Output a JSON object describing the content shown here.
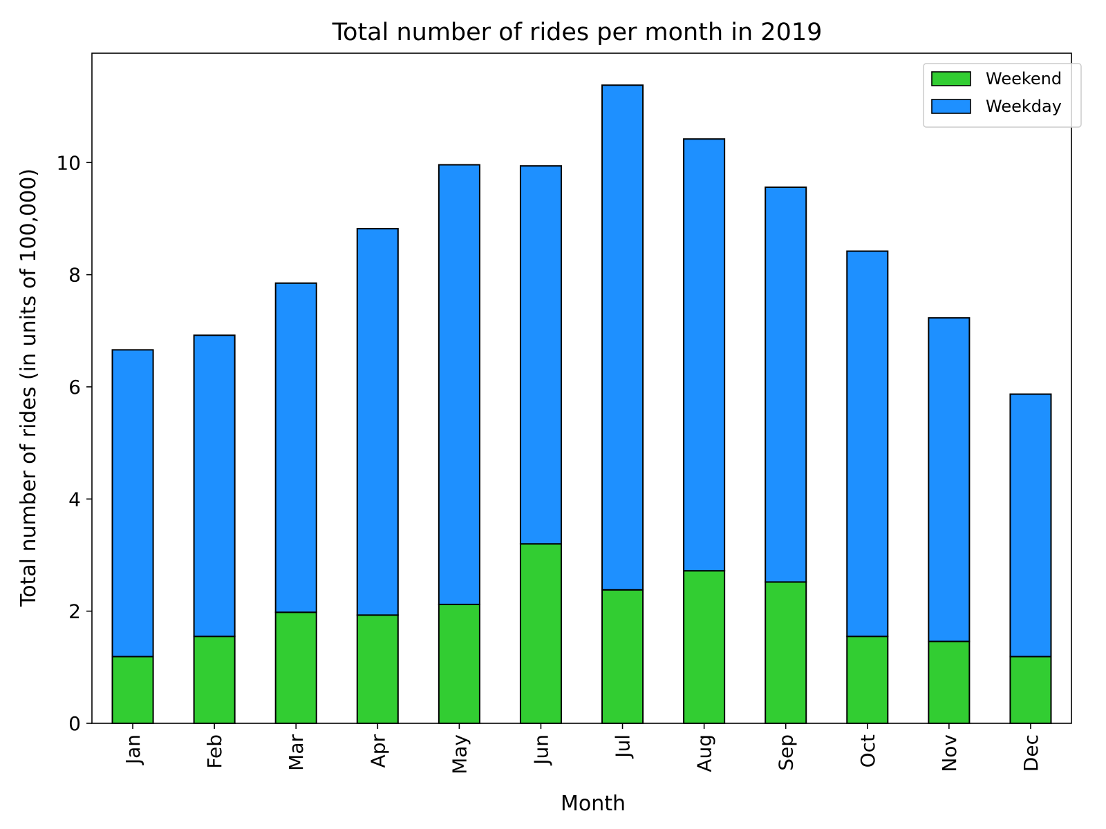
{
  "chart_data": {
    "type": "bar",
    "stacked": true,
    "title": "Total number of rides per month in 2019",
    "xlabel": "Month",
    "ylabel": "Total number of rides (in units of 100,000)",
    "categories": [
      "Jan",
      "Feb",
      "Mar",
      "Apr",
      "May",
      "Jun",
      "Jul",
      "Aug",
      "Sep",
      "Oct",
      "Nov",
      "Dec"
    ],
    "series": [
      {
        "name": "Weekend",
        "color": "#32cd32",
        "values": [
          1.19,
          1.55,
          1.98,
          1.93,
          2.12,
          3.2,
          2.38,
          2.72,
          2.52,
          1.55,
          1.46,
          1.19
        ]
      },
      {
        "name": "Weekday",
        "color": "#1e90ff",
        "values": [
          5.47,
          5.37,
          5.87,
          6.89,
          7.84,
          6.74,
          9.0,
          7.7,
          7.04,
          6.87,
          5.77,
          4.68
        ]
      }
    ],
    "ylim": [
      0,
      11.95
    ],
    "yticks": [
      0,
      2,
      4,
      6,
      8,
      10
    ],
    "legend": "top-right",
    "grid": false
  }
}
